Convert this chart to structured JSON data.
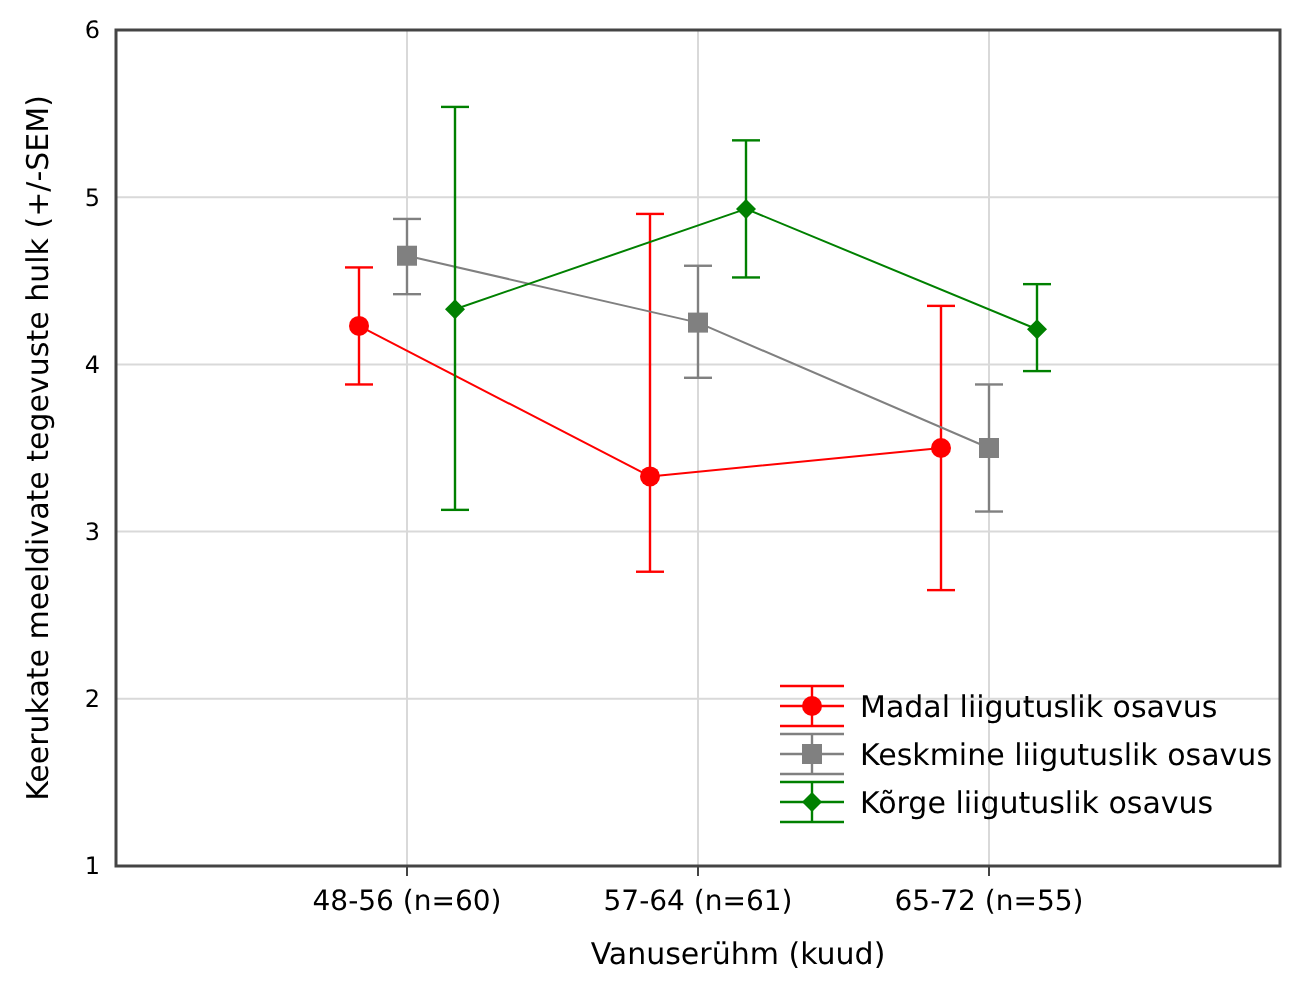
{
  "chart_data": {
    "type": "line",
    "xlabel": "Vanuserühm (kuud)",
    "ylabel": "Keerukate meeldivate tegevuste hulk (+/-SEM)",
    "categories": [
      "48-56 (n=60)",
      "57-64 (n=61)",
      "65-72 (n=55)"
    ],
    "ylim": [
      1,
      6
    ],
    "yticks": [
      1,
      2,
      3,
      4,
      5,
      6
    ],
    "grid": true,
    "legend": "bottom right",
    "series": [
      {
        "name": "Madal liigutuslik osavus",
        "color": "#ff0000",
        "marker": "circle",
        "values": [
          4.23,
          3.33,
          3.5
        ],
        "errors": [
          [
            3.88,
            4.58
          ],
          [
            2.76,
            4.9
          ],
          [
            2.65,
            4.35
          ]
        ]
      },
      {
        "name": "Keskmine liigutuslik osavus",
        "color": "#808080",
        "marker": "square",
        "values": [
          4.65,
          4.25,
          3.5
        ],
        "errors": [
          [
            4.42,
            4.87
          ],
          [
            3.92,
            4.59
          ],
          [
            3.12,
            3.88
          ]
        ]
      },
      {
        "name": "Kõrge liigutuslik osavus",
        "color": "#008000",
        "marker": "diamond",
        "values": [
          4.33,
          4.93,
          4.21
        ],
        "errors": [
          [
            3.13,
            5.54
          ],
          [
            4.52,
            5.34
          ],
          [
            3.96,
            4.48
          ]
        ]
      }
    ]
  }
}
